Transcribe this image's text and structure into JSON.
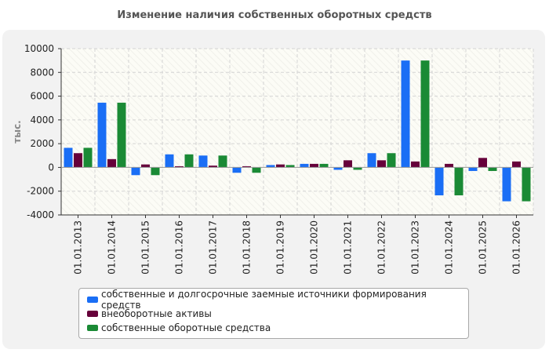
{
  "chart_data": {
    "type": "bar",
    "title": "Изменение наличия собственных оборотных средств",
    "ylabel": "тыс.",
    "ylim": [
      -4000,
      10000
    ],
    "yticks": [
      "10000",
      "8000",
      "6000",
      "4000",
      "2000",
      "0",
      "-2000",
      "-4000"
    ],
    "grid": true,
    "legend_position": "bottom",
    "categories": [
      "01.01.2013",
      "01.01.2014",
      "01.01.2015",
      "01.01.2016",
      "01.01.2017",
      "01.01.2018",
      "01.01.2019",
      "01.01.2020",
      "01.01.2021",
      "01.01.2022",
      "01.01.2023",
      "01.01.2024",
      "01.01.2025",
      "01.01.2026"
    ],
    "series": [
      {
        "name": "собственные и долгосрочные заемные источники формирования средств",
        "color": "#1a6ef5",
        "values": [
          1650,
          5450,
          -650,
          1100,
          1000,
          -450,
          200,
          300,
          -200,
          1200,
          9000,
          -2350,
          -300,
          -2850
        ]
      },
      {
        "name": "внеоборотные активы",
        "color": "#66003a",
        "values": [
          1200,
          700,
          250,
          100,
          150,
          100,
          250,
          300,
          600,
          600,
          500,
          300,
          800,
          500
        ]
      },
      {
        "name": "собственные оборотные средства",
        "color": "#1a8a35",
        "values": [
          1650,
          5450,
          -650,
          1100,
          1000,
          -450,
          200,
          300,
          -200,
          1200,
          9000,
          -2350,
          -300,
          -2850
        ]
      }
    ]
  }
}
